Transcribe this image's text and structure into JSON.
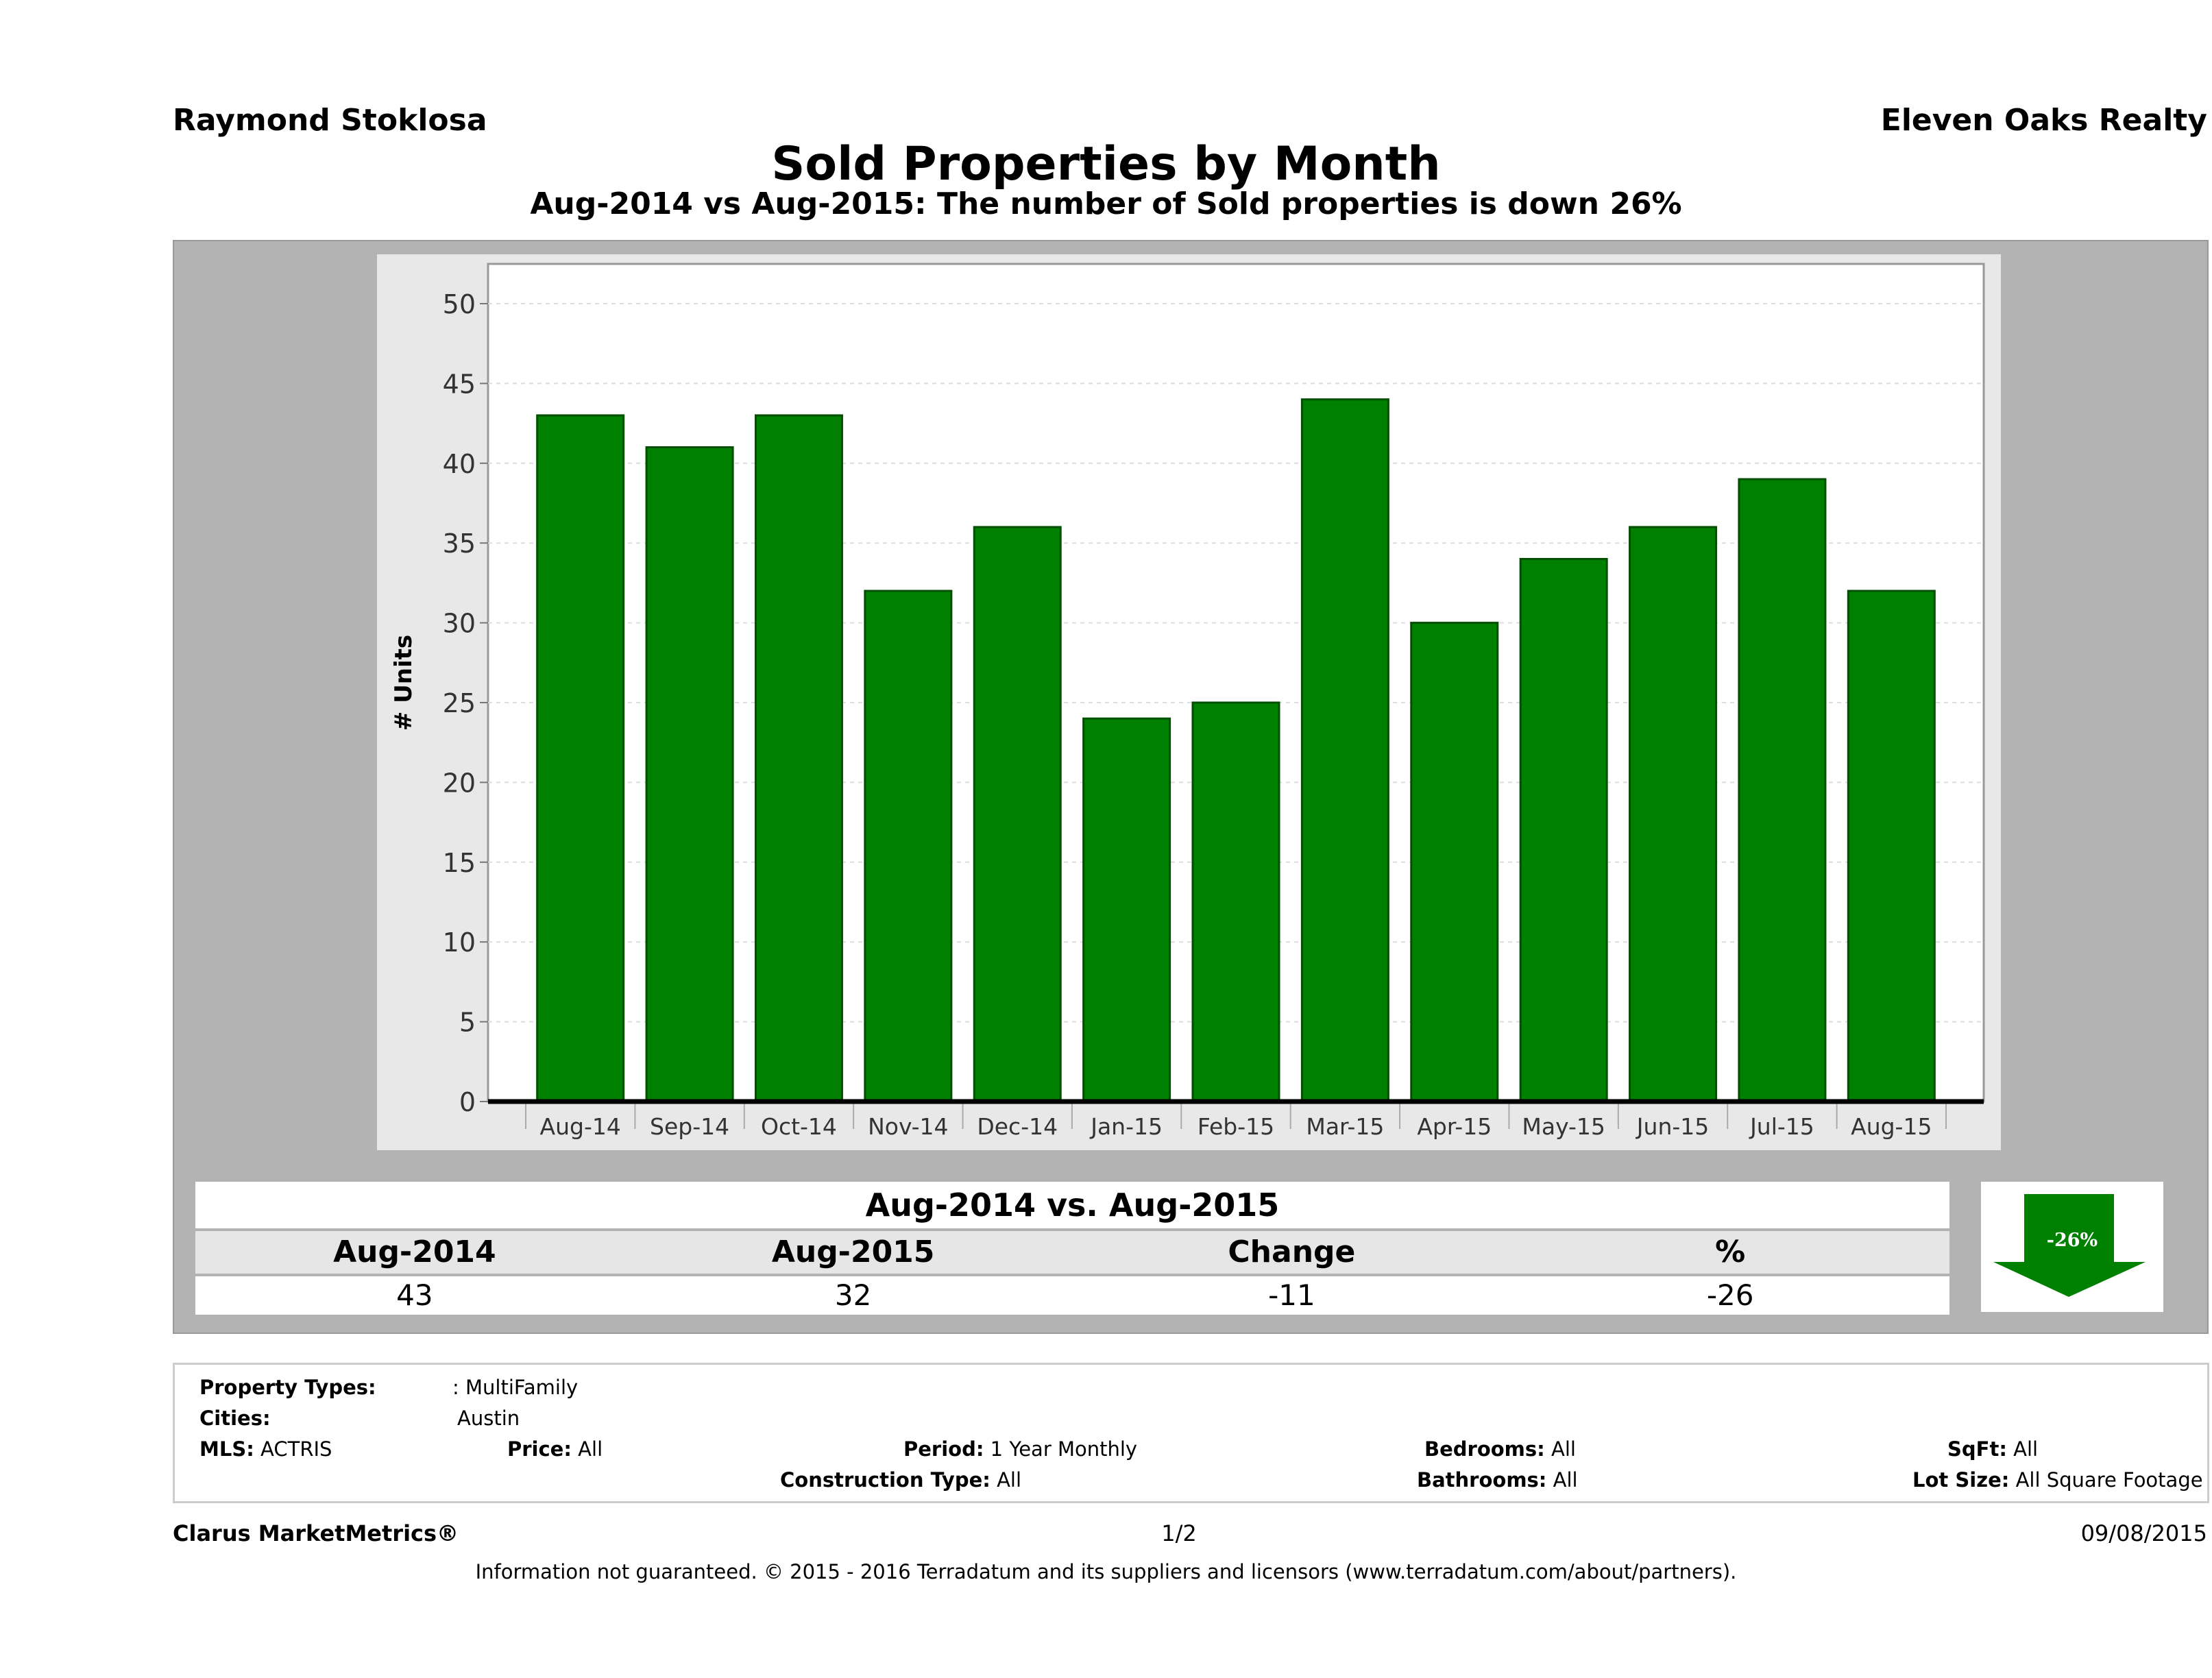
{
  "header": {
    "agent": "Raymond Stoklosa",
    "brokerage": "Eleven Oaks Realty",
    "title": "Sold Properties by Month",
    "subtitle": "Aug-2014 vs Aug-2015: The number of Sold  properties is down 26%"
  },
  "chart_data": {
    "type": "bar",
    "ylabel": "# Units",
    "ylim": [
      0,
      50
    ],
    "yticks": [
      0,
      5,
      10,
      15,
      20,
      25,
      30,
      35,
      40,
      45,
      50
    ],
    "grid": true,
    "bar_color": "#008000",
    "categories": [
      "Aug-14",
      "Sep-14",
      "Oct-14",
      "Nov-14",
      "Dec-14",
      "Jan-15",
      "Feb-15",
      "Mar-15",
      "Apr-15",
      "May-15",
      "Jun-15",
      "Jul-15",
      "Aug-15"
    ],
    "values": [
      43,
      41,
      43,
      32,
      36,
      24,
      25,
      44,
      30,
      34,
      36,
      39,
      32
    ]
  },
  "comparison": {
    "title": "Aug-2014 vs. Aug-2015",
    "headers": [
      "Aug-2014",
      "Aug-2015",
      "Change",
      "%"
    ],
    "values": [
      "43",
      "32",
      "-11",
      "-26"
    ],
    "arrow_label": "-26%",
    "arrow_direction": "down",
    "arrow_color": "#008000"
  },
  "filters": {
    "property_types_label": "Property Types:",
    "property_types": ": MultiFamily",
    "cities_label": "Cities:",
    "cities": "Austin",
    "mls_label": "MLS:",
    "mls": "ACTRIS",
    "price_label": "Price:",
    "price": "All",
    "period_label": "Period:",
    "period": "1 Year Monthly",
    "bedrooms_label": "Bedrooms:",
    "bedrooms": "All",
    "sqft_label": "SqFt:",
    "sqft": "All",
    "construction_label": "Construction Type:",
    "construction": "All",
    "bathrooms_label": "Bathrooms:",
    "bathrooms": "All",
    "lot_label": "Lot Size:",
    "lot": "All Square Footage"
  },
  "footer": {
    "brand": "Clarus MarketMetrics®",
    "page": "1/2",
    "date": "09/08/2015",
    "disclaimer": "Information not guaranteed. © 2015 - 2016 Terradatum and its suppliers and licensors (www.terradatum.com/about/partners)."
  }
}
